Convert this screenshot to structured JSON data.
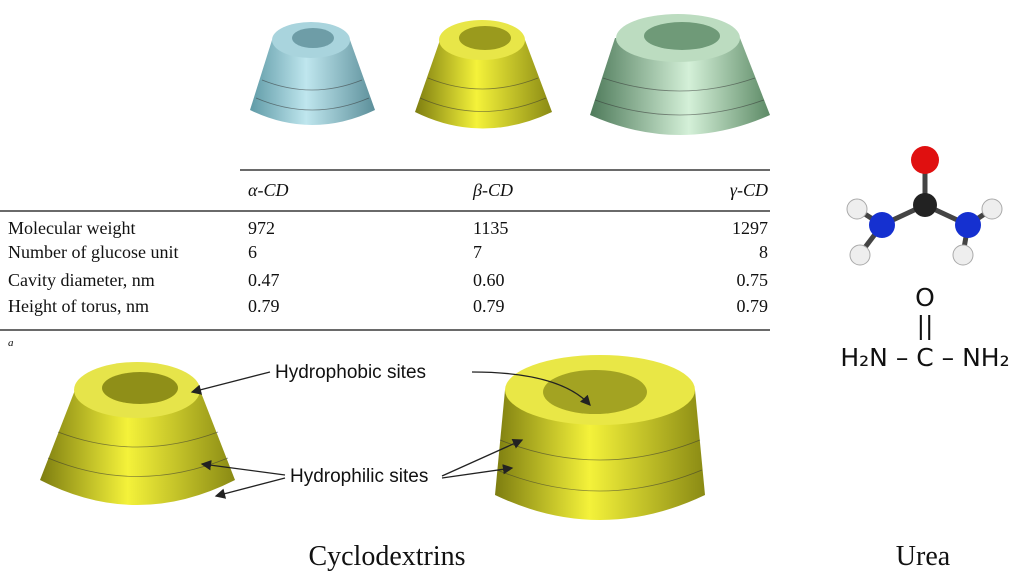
{
  "table": {
    "header": [
      "α-CD",
      "β-CD",
      "γ-CD"
    ],
    "rows": [
      [
        "Molecular weight",
        "972",
        "1135",
        "1297"
      ],
      [
        "Number of glucose unit",
        "6",
        "7",
        "8"
      ],
      [
        "Cavity diameter, nm",
        "0.47",
        "0.60",
        "0.75"
      ],
      [
        "Height of torus, nm",
        "0.79",
        "0.79",
        "0.79"
      ]
    ],
    "footnote": "a"
  },
  "labels": {
    "hydrophobic": "Hydrophobic sites",
    "hydrophilic": "Hydrophilic sites"
  },
  "urea": {
    "oxygen": "O",
    "double_bond": "||",
    "formula": "H₂N – C – NH₂"
  },
  "captions": {
    "left": "Cyclodextrins",
    "right": "Urea"
  }
}
